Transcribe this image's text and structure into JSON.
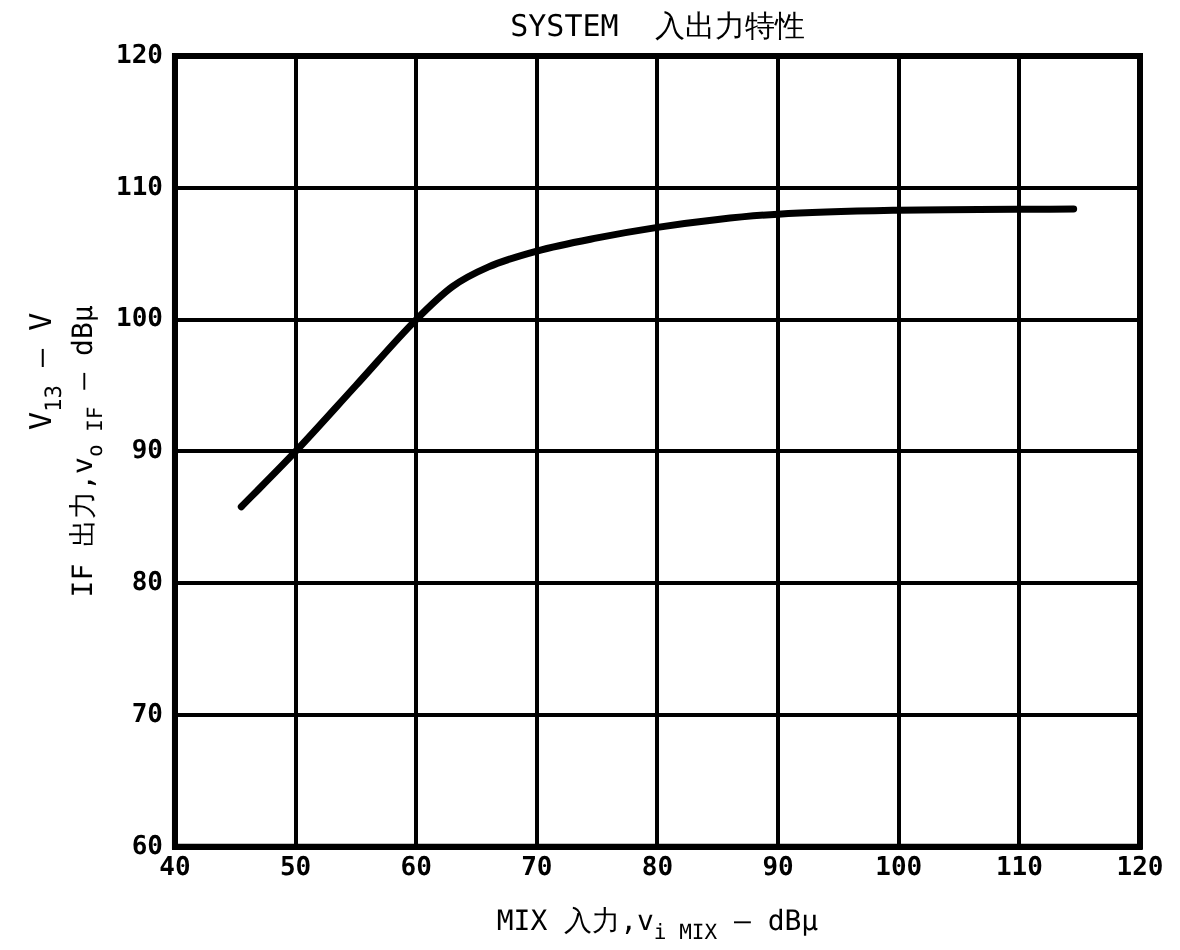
{
  "chart_data": {
    "type": "line",
    "title": "SYSTEM  入出力特性",
    "xlabel": "MIX 入力,v$_{i MIX}$ — dBμ",
    "ylabel": "IF 出力,v$_{o IF}$ — dBμ",
    "annotations": [
      "V$_{13}$ — V"
    ],
    "x": [
      45.5,
      50,
      55,
      60,
      63,
      66,
      70,
      75,
      80,
      85,
      90,
      100,
      114.5
    ],
    "series": [
      {
        "color": "#000000",
        "values": [
          85.8,
          90,
          95,
          100,
          102.5,
          104,
          105.2,
          106.2,
          107,
          107.6,
          108,
          108.3,
          108.4
        ]
      }
    ],
    "xlim": [
      40,
      120
    ],
    "xticks": [
      40,
      50,
      60,
      70,
      80,
      90,
      100,
      110,
      120
    ],
    "ylim": [
      60,
      120
    ],
    "yticks": [
      60,
      70,
      80,
      90,
      100,
      110,
      120
    ],
    "grid": true,
    "legend": false,
    "marker": "none",
    "line_style": "solid"
  }
}
